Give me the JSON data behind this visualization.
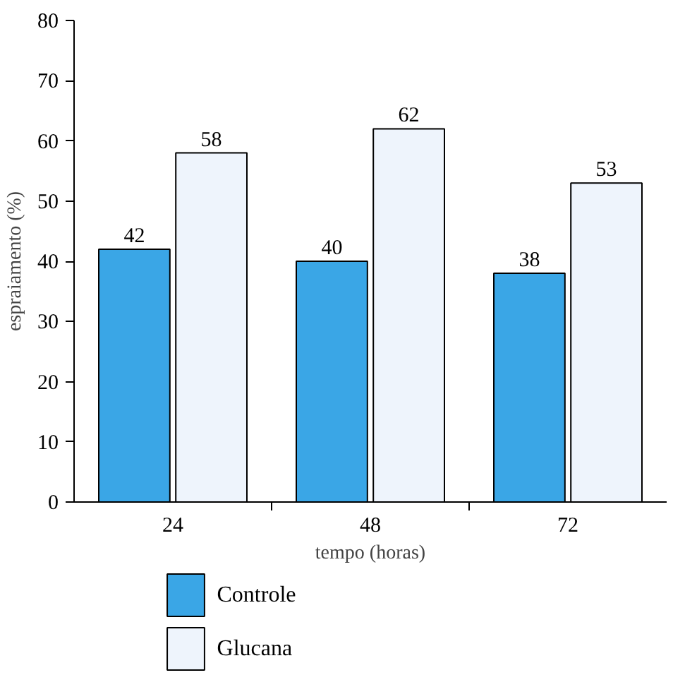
{
  "chart_data": {
    "type": "bar",
    "xlabel": "tempo (horas)",
    "ylabel": "espraiamento (%)",
    "categories": [
      "24",
      "48",
      "72"
    ],
    "series": [
      {
        "name": "Controle",
        "color": "#3aa6e6",
        "values": [
          42,
          40,
          38
        ]
      },
      {
        "name": "Glucana",
        "color": "#eef4fc",
        "values": [
          58,
          62,
          53
        ]
      }
    ],
    "ylim": [
      0,
      80
    ],
    "yticks": [
      0,
      10,
      20,
      30,
      40,
      50,
      60,
      70,
      80
    ],
    "legend": "bottom left",
    "data_labels": true
  }
}
